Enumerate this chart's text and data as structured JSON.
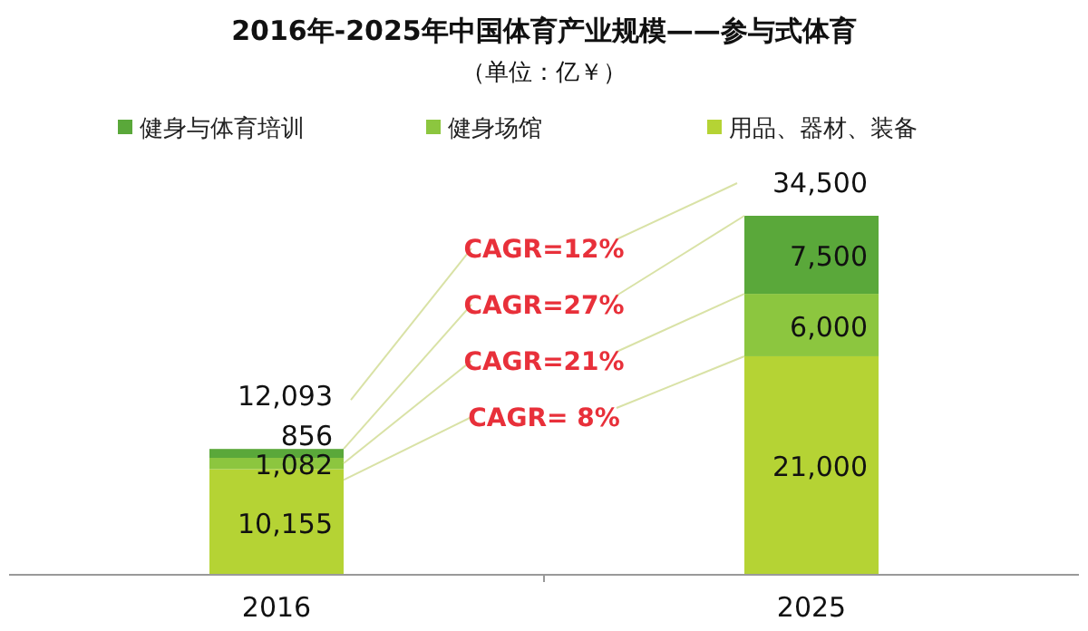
{
  "chart_data": {
    "type": "bar",
    "title": "2016年-2025年中国体育产业规模——参与式体育",
    "subtitle": "（单位：亿￥）",
    "categories": [
      "2016",
      "2025"
    ],
    "stacked": true,
    "legend": "top",
    "series": [
      {
        "name": "用品、器材、装备",
        "color": "#b5d334",
        "values": [
          10155,
          21000
        ],
        "value_labels": [
          "10,155",
          "21,000"
        ]
      },
      {
        "name": "健身场馆",
        "color": "#8cc63f",
        "values": [
          1082,
          6000
        ],
        "value_labels": [
          "1,082",
          "6,000"
        ]
      },
      {
        "name": "健身与体育培训",
        "color": "#5aa83a",
        "values": [
          856,
          7500
        ],
        "value_labels": [
          "856",
          "7,500"
        ]
      }
    ],
    "totals": [
      "12,093",
      "34,500"
    ],
    "annotations": [
      "CAGR=12%",
      "CAGR=27%",
      "CAGR=21%",
      "CAGR= 8%"
    ]
  }
}
